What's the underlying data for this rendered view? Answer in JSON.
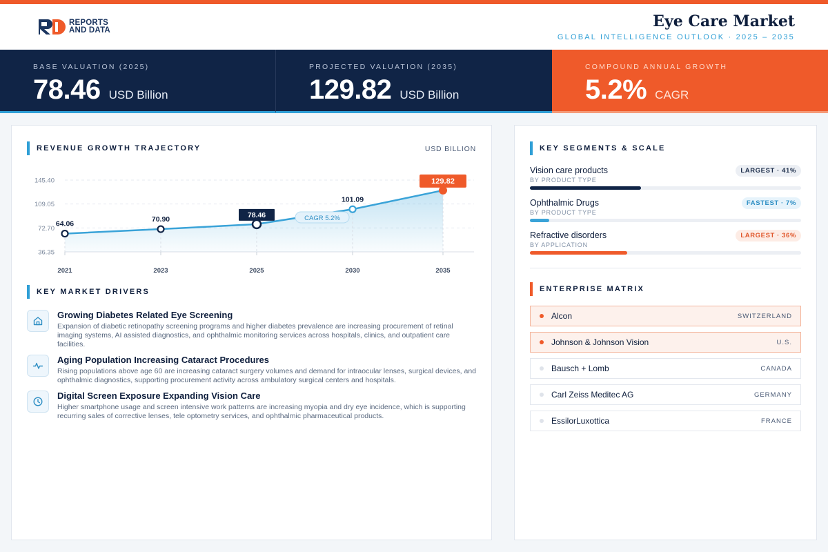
{
  "brand": {
    "line1": "REPORTS",
    "line2": "AND DATA"
  },
  "header": {
    "title": "Eye Care Market",
    "subtitle": "GLOBAL INTELLIGENCE OUTLOOK  ·  2025 – 2035"
  },
  "kpis": [
    {
      "label": "BASE VALUATION (2025)",
      "value": "78.46",
      "unit": "USD Billion"
    },
    {
      "label": "PROJECTED VALUATION (2035)",
      "value": "129.82",
      "unit": "USD Billion"
    },
    {
      "label": "COMPOUND ANNUAL GROWTH",
      "value": "5.2%",
      "unit": "CAGR"
    }
  ],
  "chart_section": {
    "title": "REVENUE GROWTH TRAJECTORY",
    "unit": "USD BILLION",
    "cagr_label": "CAGR 5.2%"
  },
  "chart_data": {
    "type": "area",
    "x": [
      "2021",
      "2023",
      "2025",
      "2030",
      "2035"
    ],
    "values": [
      64.06,
      70.9,
      78.46,
      101.09,
      129.82
    ],
    "value_labels": [
      "64.06",
      "70.90",
      "78.46",
      "101.09",
      "129.82"
    ],
    "yticks": [
      "145.40",
      "109.05",
      "72.70",
      "36.35"
    ],
    "ytick_values": [
      145.4,
      109.05,
      72.7,
      36.35
    ],
    "ylim": [
      36.35,
      145.4
    ],
    "grid": true,
    "colors": {
      "line": "#3aa3d8",
      "highlight": "#102446",
      "end": "#ef5a2a"
    }
  },
  "drivers_section": {
    "title": "KEY MARKET DRIVERS"
  },
  "drivers": [
    {
      "icon": "home-icon",
      "title": "Growing Diabetes Related Eye Screening",
      "desc": "Expansion of diabetic retinopathy screening programs and higher diabetes prevalence are increasing procurement of retinal imaging systems, AI assisted diagnostics, and ophthalmic monitoring services across hospitals, clinics, and outpatient care facilities."
    },
    {
      "icon": "pulse-icon",
      "title": "Aging Population Increasing Cataract Procedures",
      "desc": "Rising populations above age 60 are increasing cataract surgery volumes and demand for intraocular lenses, surgical devices, and ophthalmic diagnostics, supporting procurement activity across ambulatory surgical centers and hospitals."
    },
    {
      "icon": "clock-icon",
      "title": "Digital Screen Exposure Expanding Vision Care",
      "desc": "Higher smartphone usage and screen intensive work patterns are increasing myopia and dry eye incidence, which is supporting recurring sales of corrective lenses, tele optometry services, and ophthalmic pharmaceutical products."
    }
  ],
  "segments_section": {
    "title": "KEY SEGMENTS & SCALE"
  },
  "segments": [
    {
      "name": "Vision care products",
      "sub": "BY PRODUCT TYPE",
      "badge": "LARGEST · 41%",
      "share": 0.41,
      "color": "#102446",
      "badge_bg": "#eceff4",
      "badge_fg": "#1c2d4a"
    },
    {
      "name": "Ophthalmic Drugs",
      "sub": "BY PRODUCT TYPE",
      "badge": "FASTEST · 7%",
      "share": 0.07,
      "color": "#3aa3d8",
      "badge_bg": "#e6f3fb",
      "badge_fg": "#2f8fc4"
    },
    {
      "name": "Refractive disorders",
      "sub": "BY APPLICATION",
      "badge": "LARGEST · 36%",
      "share": 0.36,
      "color": "#ef5a2a",
      "badge_bg": "#fdece5",
      "badge_fg": "#e0562a"
    }
  ],
  "matrix_section": {
    "title": "ENTERPRISE MATRIX"
  },
  "matrix": [
    {
      "name": "Alcon",
      "country": "SWITZERLAND"
    },
    {
      "name": "Johnson & Johnson Vision",
      "country": "U.S."
    },
    {
      "name": "Bausch + Lomb",
      "country": "CANADA"
    },
    {
      "name": "Carl Zeiss Meditec AG",
      "country": "GERMANY"
    },
    {
      "name": "EssilorLuxottica",
      "country": "FRANCE"
    }
  ]
}
